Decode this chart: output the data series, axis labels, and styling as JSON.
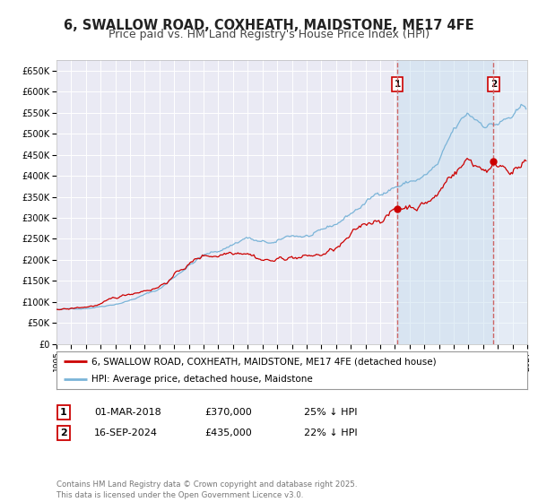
{
  "title": "6, SWALLOW ROAD, COXHEATH, MAIDSTONE, ME17 4FE",
  "subtitle": "Price paid vs. HM Land Registry's House Price Index (HPI)",
  "ylim": [
    0,
    675000
  ],
  "xlim_start": 1995,
  "xlim_end": 2027,
  "yticks": [
    0,
    50000,
    100000,
    150000,
    200000,
    250000,
    300000,
    350000,
    400000,
    450000,
    500000,
    550000,
    600000,
    650000
  ],
  "ytick_labels": [
    "£0",
    "£50K",
    "£100K",
    "£150K",
    "£200K",
    "£250K",
    "£300K",
    "£350K",
    "£400K",
    "£450K",
    "£500K",
    "£550K",
    "£600K",
    "£650K"
  ],
  "hpi_color": "#7ab4d8",
  "hpi_fill_color": "#c8dff0",
  "price_color": "#cc0000",
  "dashed_line_color": "#cc6666",
  "marker1_date": 2018.17,
  "marker2_date": 2024.71,
  "legend_label1": "6, SWALLOW ROAD, COXHEATH, MAIDSTONE, ME17 4FE (detached house)",
  "legend_label2": "HPI: Average price, detached house, Maidstone",
  "annotation1_num": "1",
  "annotation1_date": "01-MAR-2018",
  "annotation1_price": "£370,000",
  "annotation1_hpi": "25% ↓ HPI",
  "annotation2_num": "2",
  "annotation2_date": "16-SEP-2024",
  "annotation2_price": "£435,000",
  "annotation2_hpi": "22% ↓ HPI",
  "footer": "Contains HM Land Registry data © Crown copyright and database right 2025.\nThis data is licensed under the Open Government Licence v3.0.",
  "background_color": "#ffffff",
  "plot_bg_color": "#eaeaf4",
  "grid_color": "#ffffff",
  "title_fontsize": 10.5,
  "subtitle_fontsize": 9
}
